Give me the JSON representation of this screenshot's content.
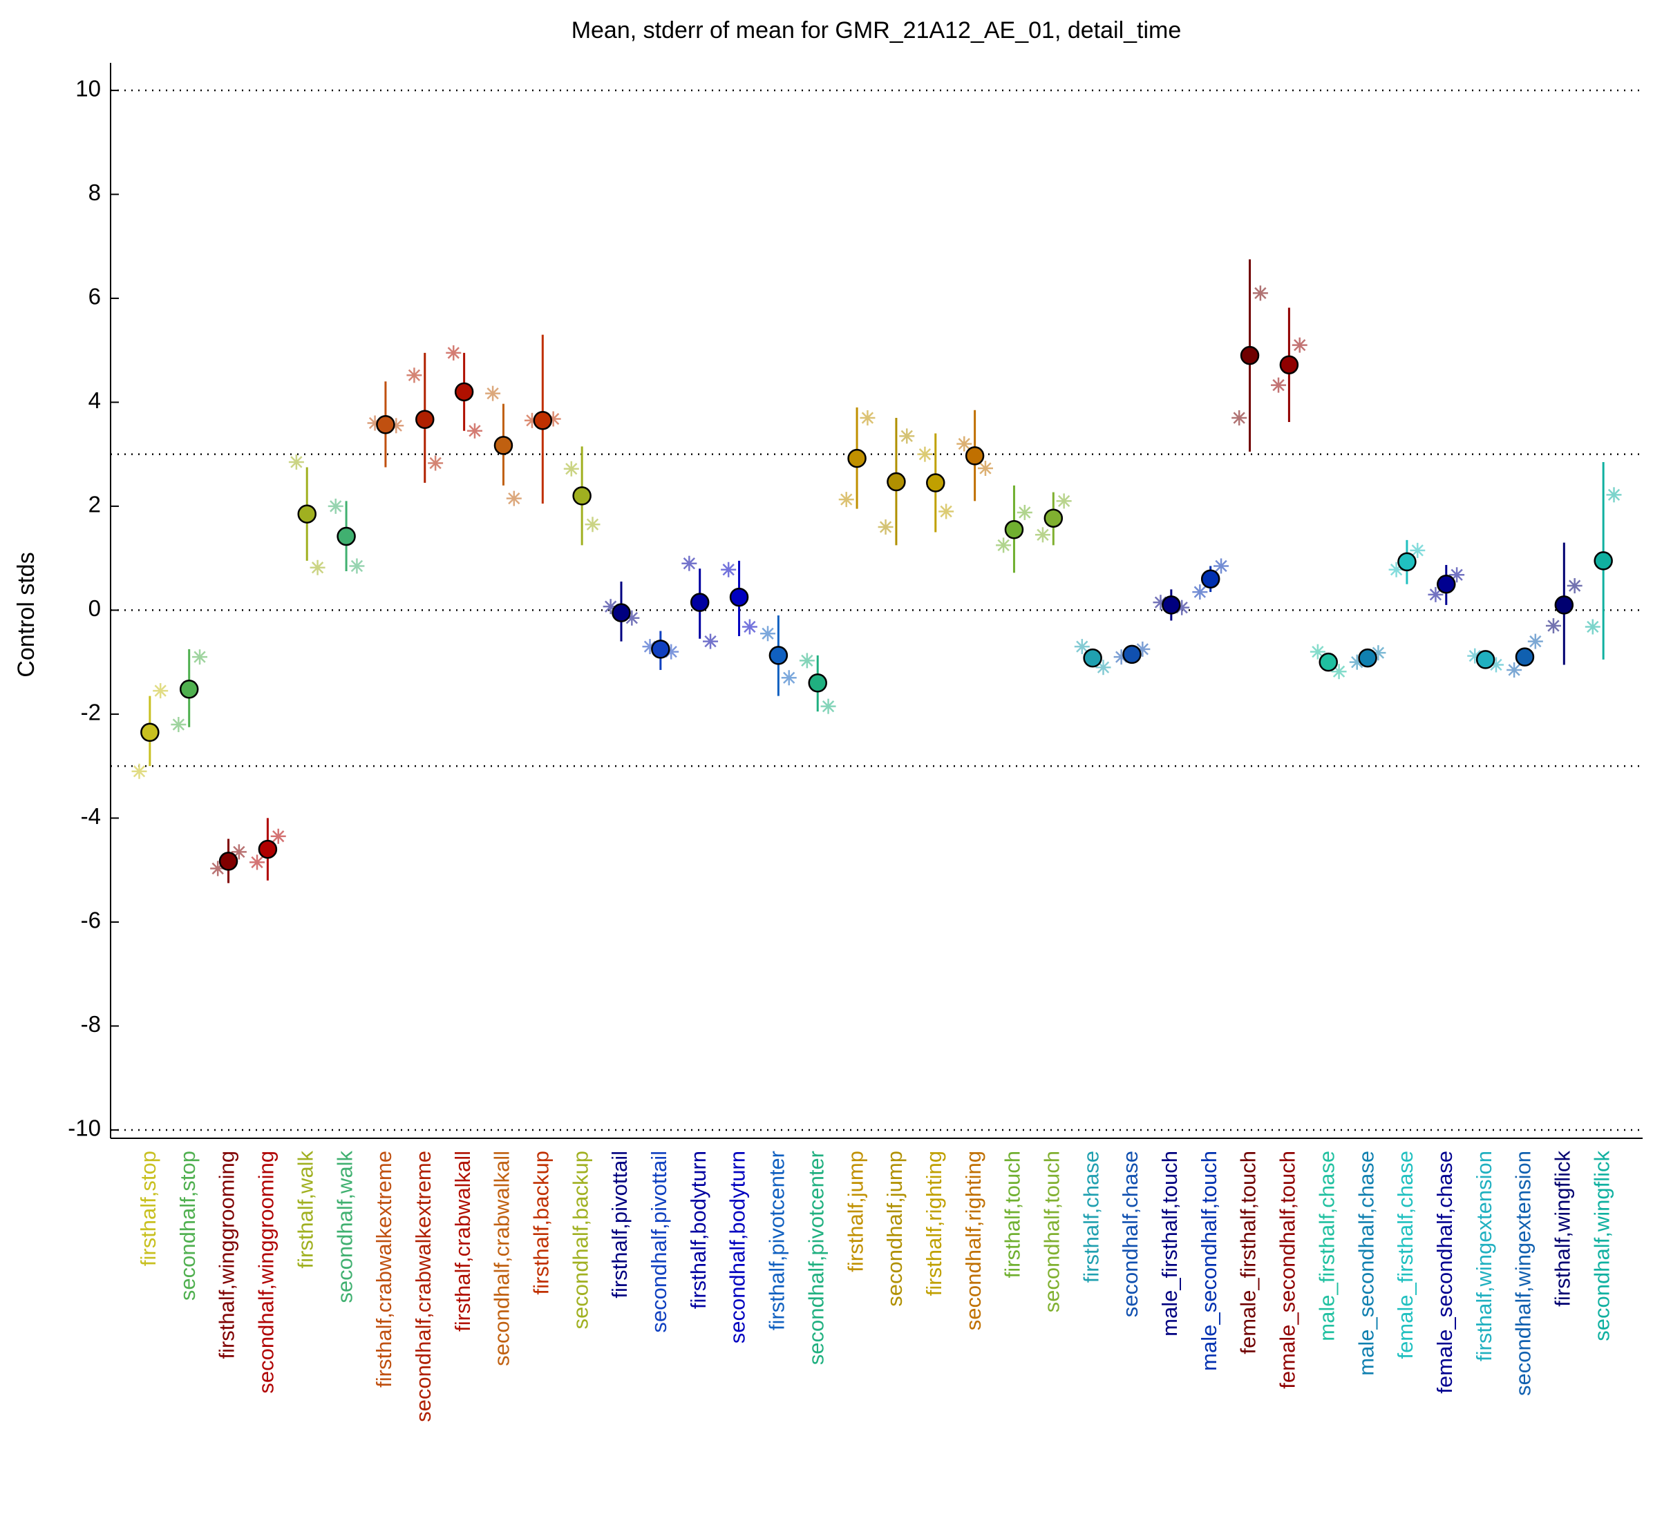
{
  "chart_data": {
    "type": "errorbar",
    "title": "Mean, stderr of mean for GMR_21A12_AE_01, detail_time",
    "y_label": "Control stds",
    "ylim": [
      -10.16,
      10.53
    ],
    "yticks": [
      -10,
      -8,
      -6,
      -4,
      -2,
      0,
      2,
      4,
      6,
      8,
      10
    ],
    "reference_lines": [
      10,
      3,
      0,
      -3,
      -10
    ],
    "categories": [
      "firsthalf,stop",
      "secondhalf,stop",
      "firsthalf,winggrooming",
      "secondhalf,winggrooming",
      "firsthalf,walk",
      "secondhalf,walk",
      "firsthalf,crabwalkextreme",
      "secondhalf,crabwalkextreme",
      "firsthalf,crabwalkall",
      "secondhalf,crabwalkall",
      "firsthalf,backup",
      "secondhalf,backup",
      "firsthalf,pivottail",
      "secondhalf,pivottail",
      "firsthalf,bodyturn",
      "secondhalf,bodyturn",
      "firsthalf,pivotcenter",
      "secondhalf,pivotcenter",
      "firsthalf,jump",
      "secondhalf,jump",
      "firsthalf,righting",
      "secondhalf,righting",
      "firsthalf,touch",
      "secondhalf,touch",
      "firsthalf,chase",
      "secondhalf,chase",
      "male_firsthalf,touch",
      "male_secondhalf,touch",
      "female_firsthalf,touch",
      "female_secondhalf,touch",
      "male_firsthalf,chase",
      "male_secondhalf,chase",
      "female_firsthalf,chase",
      "female_secondhalf,chase",
      "firsthalf,wingextension",
      "secondhalf,wingextension",
      "firsthalf,wingflick",
      "secondhalf,wingflick"
    ],
    "colors": [
      "#c8c020",
      "#50b050",
      "#800000",
      "#b00000",
      "#a0b020",
      "#40b070",
      "#c05010",
      "#b02000",
      "#b01000",
      "#c06010",
      "#c03000",
      "#a0b020",
      "#000080",
      "#1040c0",
      "#0000a0",
      "#0000c0",
      "#1060c0",
      "#20b080",
      "#c09000",
      "#b09000",
      "#c0a000",
      "#c07000",
      "#70b030",
      "#80b030",
      "#20a0b0",
      "#1050b0",
      "#000080",
      "#0030b0",
      "#700000",
      "#900000",
      "#20c0a0",
      "#1080b0",
      "#20c0c0",
      "#000090",
      "#20b0c0",
      "#1060b0",
      "#000070",
      "#10b0a0"
    ],
    "values": [
      -2.35,
      -1.52,
      -4.83,
      -4.6,
      1.85,
      1.42,
      3.57,
      3.67,
      4.2,
      3.17,
      3.65,
      2.2,
      -0.05,
      -0.75,
      0.15,
      0.25,
      -0.87,
      -1.4,
      2.92,
      2.47,
      2.45,
      2.97,
      1.55,
      1.77,
      -0.92,
      -0.85,
      0.1,
      0.6,
      4.9,
      4.72,
      -1.0,
      -0.92,
      0.93,
      0.5,
      -0.95,
      -0.9,
      0.1,
      0.95
    ],
    "lower": [
      -3.0,
      -2.25,
      -5.25,
      -5.2,
      0.95,
      0.75,
      2.75,
      2.45,
      3.45,
      2.4,
      2.05,
      1.25,
      -0.6,
      -1.15,
      -0.55,
      -0.5,
      -1.65,
      -1.95,
      1.95,
      1.25,
      1.5,
      2.1,
      0.72,
      1.25,
      -1.05,
      -0.98,
      -0.2,
      0.35,
      3.05,
      3.62,
      -1.1,
      -1.02,
      0.5,
      0.1,
      -1.05,
      -1.02,
      -1.05,
      -0.95
    ],
    "upper": [
      -1.65,
      -0.75,
      -4.4,
      -4.0,
      2.75,
      2.1,
      4.4,
      4.95,
      4.95,
      3.97,
      5.3,
      3.15,
      0.55,
      -0.4,
      0.8,
      0.95,
      -0.1,
      -0.87,
      3.9,
      3.7,
      3.4,
      3.85,
      2.4,
      2.27,
      -0.8,
      -0.72,
      0.4,
      0.85,
      6.75,
      5.82,
      -0.9,
      -0.82,
      1.35,
      0.87,
      -0.85,
      -0.78,
      1.3,
      2.85
    ],
    "stars_first": [
      -3.1,
      -2.2,
      -4.97,
      -4.85,
      2.85,
      2.0,
      3.6,
      4.52,
      4.95,
      4.17,
      3.65,
      2.72,
      0.07,
      -0.7,
      0.9,
      0.78,
      -0.45,
      -0.97,
      2.13,
      1.6,
      3.0,
      3.2,
      1.25,
      1.45,
      -0.7,
      -0.9,
      0.15,
      0.35,
      3.7,
      4.33,
      -0.8,
      -1.0,
      0.78,
      0.3,
      -0.88,
      -1.15,
      -0.3,
      -0.32
    ],
    "stars_second": [
      -1.55,
      -0.9,
      -4.65,
      -4.35,
      0.82,
      0.85,
      3.55,
      2.83,
      3.45,
      2.15,
      3.68,
      1.65,
      -0.15,
      -0.8,
      -0.6,
      -0.32,
      -1.3,
      -1.85,
      3.7,
      3.35,
      1.9,
      2.73,
      1.88,
      2.1,
      -1.1,
      -0.75,
      0.05,
      0.85,
      6.1,
      5.1,
      -1.18,
      -0.82,
      1.15,
      0.68,
      -1.05,
      -0.6,
      0.47,
      2.22
    ]
  }
}
